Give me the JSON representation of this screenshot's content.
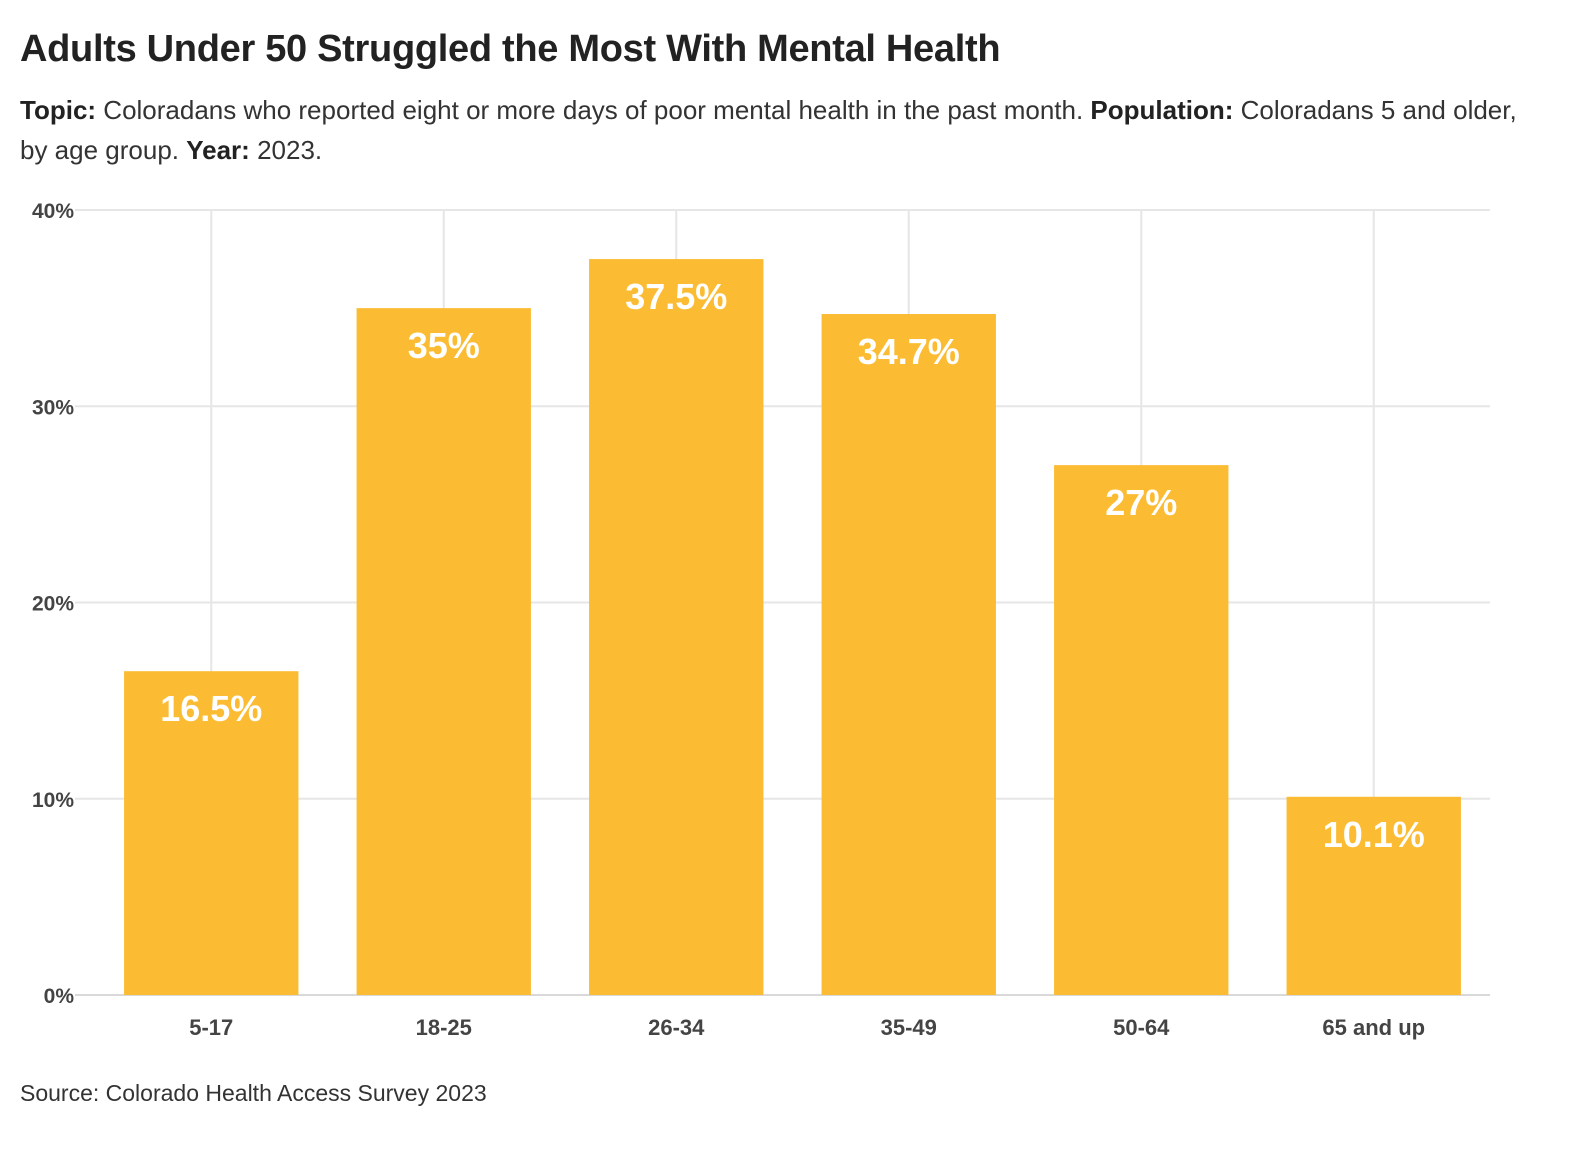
{
  "header": {
    "title": "Adults Under 50 Struggled the Most With Mental Health",
    "subtitle": {
      "topic_label": "Topic:",
      "topic_text": " Coloradans who reported eight or more days of poor mental health in the past month. ",
      "population_label": "Population:",
      "population_text": " Coloradans 5 and older, by age group. ",
      "year_label": "Year:",
      "year_text": " 2023."
    }
  },
  "footer": {
    "source": "Source: Colorado Health Access Survey 2023"
  },
  "colors": {
    "bar": "#FBBC33",
    "grid": "#E6E6E6",
    "axis_text": "#444444",
    "bar_label": "#FFFFFF"
  },
  "chart_data": {
    "type": "bar",
    "title": "Adults Under 50 Struggled the Most With Mental Health",
    "xlabel": "",
    "ylabel": "",
    "categories": [
      "5-17",
      "18-25",
      "26-34",
      "35-49",
      "50-64",
      "65 and up"
    ],
    "values": [
      16.5,
      35,
      37.5,
      34.7,
      27,
      10.1
    ],
    "data_labels": [
      "16.5%",
      "35%",
      "37.5%",
      "34.7%",
      "27%",
      "10.1%"
    ],
    "ylim": [
      0,
      40
    ],
    "yticks": [
      0,
      10,
      20,
      30,
      40
    ],
    "ytick_labels": [
      "0%",
      "10%",
      "20%",
      "30%",
      "40%"
    ],
    "grid": true,
    "legend": "none"
  }
}
